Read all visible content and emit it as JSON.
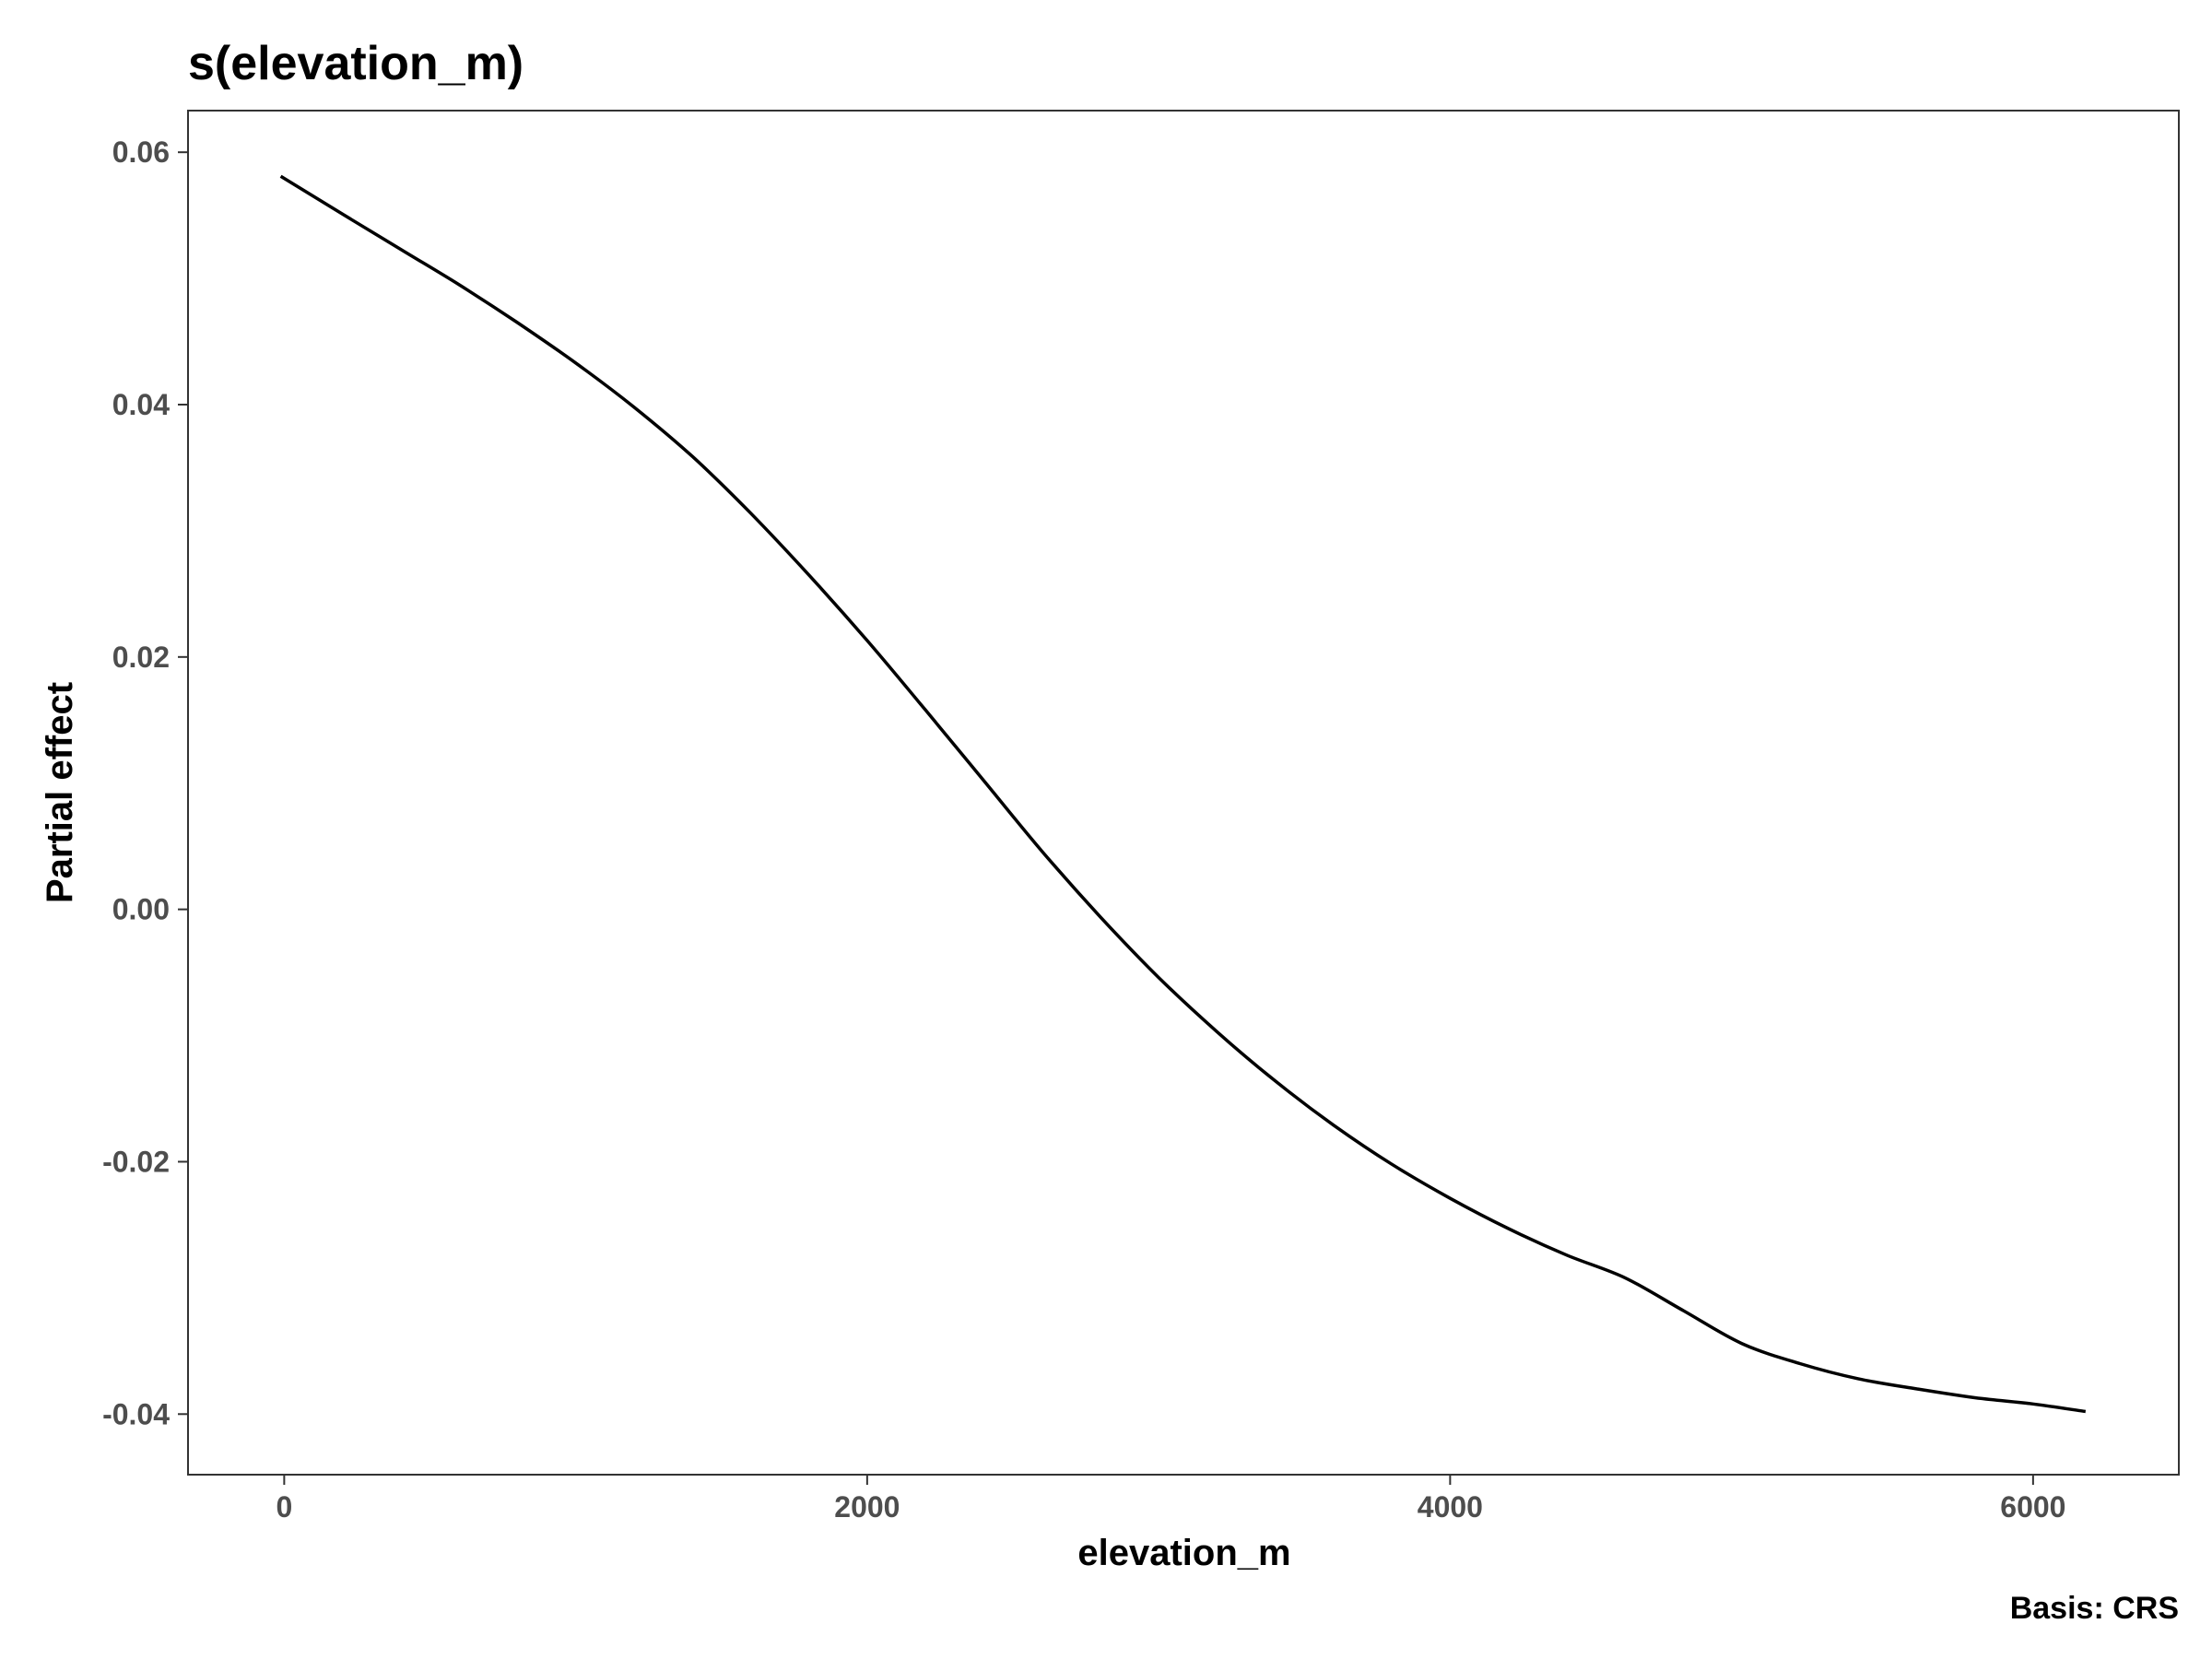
{
  "chart_data": {
    "type": "line",
    "title": "s(elevation_m)",
    "xlabel": "elevation_m",
    "ylabel": "Partial effect",
    "caption": "Basis: CRS",
    "xlim": [
      -330,
      6500
    ],
    "ylim": [
      -0.0448,
      0.0633
    ],
    "x_ticks": [
      0,
      2000,
      4000,
      6000
    ],
    "x_tick_labels": [
      "0",
      "2000",
      "4000",
      "6000"
    ],
    "y_ticks": [
      -0.04,
      -0.02,
      0.0,
      0.02,
      0.04,
      0.06
    ],
    "y_tick_labels": [
      "-0.04",
      "-0.02",
      "0.00",
      "0.02",
      "0.04",
      "0.06"
    ],
    "grid": false,
    "series": [
      {
        "color": "#000000",
        "x": [
          -12,
          200,
          400,
          600,
          800,
          1000,
          1200,
          1400,
          1600,
          1800,
          2000,
          2200,
          2400,
          2600,
          2800,
          3000,
          3200,
          3400,
          3600,
          3800,
          4000,
          4200,
          4400,
          4600,
          4800,
          5000,
          5200,
          5400,
          5600,
          5800,
          6000,
          6180
        ],
        "y": [
          0.0581,
          0.0551,
          0.0523,
          0.0495,
          0.0465,
          0.0433,
          0.0398,
          0.0359,
          0.0314,
          0.0265,
          0.0213,
          0.0158,
          0.0102,
          0.0046,
          -0.0006,
          -0.0054,
          -0.0097,
          -0.0136,
          -0.0171,
          -0.0202,
          -0.0229,
          -0.0253,
          -0.0274,
          -0.0292,
          -0.0318,
          -0.0344,
          -0.036,
          -0.0372,
          -0.038,
          -0.0387,
          -0.0392,
          -0.0398
        ]
      }
    ]
  }
}
